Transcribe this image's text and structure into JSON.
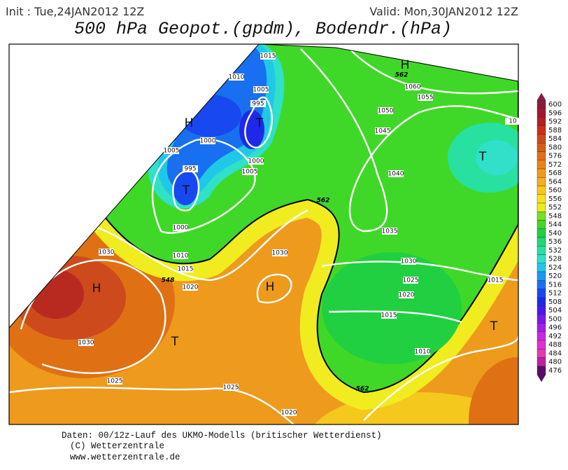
{
  "header": {
    "init": "Init : Tue,24JAN2012 12Z",
    "valid": "Valid: Mon,30JAN2012 12Z",
    "title": "500 hPa Geopot.(gpdm), Bodendr.(hPa)"
  },
  "colorbar": {
    "levels": [
      600,
      596,
      592,
      588,
      584,
      580,
      576,
      572,
      568,
      564,
      560,
      556,
      552,
      548,
      544,
      540,
      536,
      532,
      528,
      524,
      520,
      516,
      512,
      508,
      504,
      500,
      496,
      492,
      488,
      484,
      480,
      476
    ],
    "colors": [
      "#8b1a3a",
      "#a0182f",
      "#b41e24",
      "#c8301e",
      "#cc4a1c",
      "#d45d17",
      "#e07014",
      "#e8841a",
      "#ee9a1c",
      "#f2b01e",
      "#f5c81e",
      "#f8e020",
      "#e8ec1a",
      "#78e020",
      "#40d828",
      "#20d040",
      "#20d870",
      "#28e0a0",
      "#30e0c8",
      "#20c8e8",
      "#1898f0",
      "#1870f0",
      "#1848f0",
      "#2028e8",
      "#4818e8",
      "#7818e8",
      "#a020e8",
      "#c828e0",
      "#e030d0",
      "#e838b0",
      "#c020a0",
      "#5a0a6a"
    ]
  },
  "map": {
    "pressure_labels": [
      "1015",
      "1010",
      "1005",
      "995",
      "1000",
      "1005",
      "995",
      "1000",
      "1005",
      "1000",
      "1010",
      "1015",
      "1020",
      "1030",
      "1030",
      "1025",
      "1025",
      "1020",
      "1030",
      "1060",
      "1055",
      "1050",
      "1045",
      "1040",
      "1035",
      "1030",
      "1025",
      "1020",
      "1015",
      "1010",
      "1015",
      "10"
    ],
    "contour_labels": [
      "562",
      "562",
      "548",
      "562"
    ],
    "centers": [
      "H",
      "H",
      "T",
      "T",
      "H",
      "T",
      "H",
      "T",
      "T"
    ]
  },
  "footer": {
    "line1": "Daten: 00/12z-Lauf des UKMO-Modells (britischer Wetterdienst)",
    "line2": "(C) Wetterzentrale",
    "line3": "www.wetterzentrale.de"
  }
}
